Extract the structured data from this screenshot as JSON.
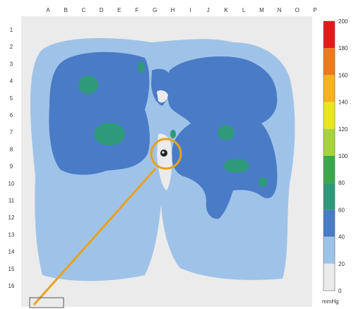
{
  "chart_data": {
    "type": "heatmap",
    "columns": [
      "A",
      "B",
      "C",
      "D",
      "E",
      "F",
      "G",
      "H",
      "I",
      "J",
      "K",
      "L",
      "M",
      "N",
      "O",
      "P"
    ],
    "rows": [
      "1",
      "2",
      "3",
      "4",
      "5",
      "6",
      "7",
      "8",
      "9",
      "10",
      "11",
      "12",
      "13",
      "14",
      "15",
      "16"
    ],
    "colorbar": {
      "ticks": [
        "200",
        "180",
        "160",
        "140",
        "120",
        "100",
        "80",
        "60",
        "40",
        "20",
        "0"
      ],
      "unit": "mmHg",
      "range": [
        0,
        200
      ],
      "bands": [
        {
          "from": 180,
          "to": 200,
          "color": "#e31a1c"
        },
        {
          "from": 160,
          "to": 180,
          "color": "#f07a1a"
        },
        {
          "from": 140,
          "to": 160,
          "color": "#f7b21c"
        },
        {
          "from": 120,
          "to": 140,
          "color": "#e8e61e"
        },
        {
          "from": 100,
          "to": 120,
          "color": "#a6d43a"
        },
        {
          "from": 80,
          "to": 100,
          "color": "#3aa84a"
        },
        {
          "from": 60,
          "to": 80,
          "color": "#2f9a7a"
        },
        {
          "from": 40,
          "to": 60,
          "color": "#4a7bc6"
        },
        {
          "from": 20,
          "to": 40,
          "color": "#9fc3e8"
        },
        {
          "from": 0,
          "to": 20,
          "color": "#ebebeb"
        }
      ]
    },
    "colors": {
      "background": "#ebebeb",
      "band_20_40": "#9fc3e8",
      "band_40_60": "#4a7bc6",
      "band_60_80": "#2f9a7a",
      "highlight_circle": "#e8a21c",
      "pointer_line": "#e8a21c"
    }
  }
}
